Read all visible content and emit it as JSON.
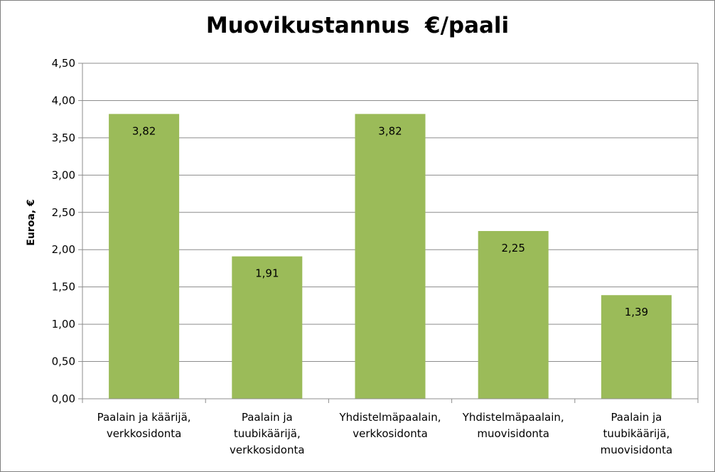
{
  "chart_data": {
    "type": "bar",
    "title": "Muovikustannus  €/paali",
    "xlabel": "",
    "ylabel": "Euroa, €",
    "categories": [
      [
        "Paalain ja kääriјä,",
        "verkkosidonta"
      ],
      [
        "Paalain ja",
        "tuubikäärijä,",
        "verkkosidonta"
      ],
      [
        "Yhdistelmäpaalain,",
        "verkkosidonta"
      ],
      [
        "Yhdistelmäpaalain,",
        "muovisidonta"
      ],
      [
        "Paalain ja",
        "tuubikäärijä,",
        "muovisidonta"
      ]
    ],
    "values": [
      3.82,
      1.91,
      3.82,
      2.25,
      1.39
    ],
    "data_labels": [
      "3,82",
      "1,91",
      "3,82",
      "2,25",
      "1,39"
    ],
    "ylim": [
      0,
      4.5
    ],
    "yticks": [
      0,
      0.5,
      1,
      1.5,
      2,
      2.5,
      3,
      3.5,
      4,
      4.5
    ],
    "ytick_labels": [
      "0,00",
      "0,50",
      "1,00",
      "1,50",
      "2,00",
      "2,50",
      "3,00",
      "3,50",
      "4,00",
      "4,50"
    ],
    "grid": true,
    "legend": "none",
    "bar_color": "#9BBB59",
    "grid_color": "#8c8c8c",
    "axis_color": "#8c8c8c",
    "plot_border_color": "#8c8c8c"
  }
}
